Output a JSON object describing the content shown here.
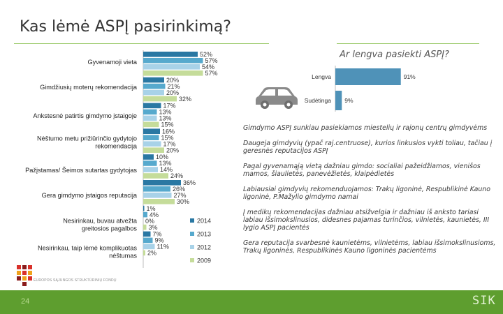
{
  "page_title": "Kas lėmė ASPĮ pasirinkimą?",
  "side_title": "Ar lengva pasiekti ASPĮ?",
  "colors": {
    "series": [
      "#2a78a3",
      "#56a9cd",
      "#a8d2e8",
      "#c5dc9a"
    ],
    "accent": "#5e9e2f",
    "rule": "#9ccb6d"
  },
  "chart_data": [
    {
      "type": "bar",
      "orientation": "horizontal",
      "categories": [
        "Gyvenamoji vieta",
        "Gimdžiusių moterų rekomendacija",
        "Ankstesnė patirtis gimdymo įstaigoje",
        "Nėštumo metu prižiūrinčio gydytojo rekomendacija",
        "Pažįstamas/ Šeimos sutartas gydytojas",
        "Gera gimdymo įstaigos reputacija",
        "Nesirinkau, buvau atvežta greitosios pagalbos",
        "Nesirinkau, taip lėmė komplikuotas nėštumas"
      ],
      "series": [
        {
          "name": "2014",
          "values": [
            52,
            20,
            17,
            16,
            10,
            36,
            1,
            7
          ]
        },
        {
          "name": "2013",
          "values": [
            57,
            21,
            13,
            15,
            13,
            26,
            4,
            9
          ]
        },
        {
          "name": "2012",
          "values": [
            54,
            20,
            13,
            17,
            14,
            27,
            0,
            11
          ]
        },
        {
          "name": "2009",
          "values": [
            57,
            32,
            15,
            20,
            24,
            30,
            3,
            2
          ]
        }
      ],
      "value_suffix": "%",
      "xlim": [
        0,
        60
      ],
      "legend_position": "bottom-right"
    },
    {
      "type": "bar",
      "orientation": "horizontal",
      "title": "Ar lengva pasiekti ASPĮ?",
      "categories": [
        "Lengva",
        "Sudėtinga"
      ],
      "values": [
        91,
        9
      ],
      "value_labels": [
        "91%",
        "9%"
      ],
      "xlim": [
        0,
        100
      ]
    }
  ],
  "notes": [
    "Gimdymo ASPĮ sunkiau pasiekiamos miestelių ir rajonų centrų gimdyvėms",
    "Daugeja gimdyvių (ypač raj.centruose), kurios linkusios vykti toliau, tačiau į geresnės reputacijos ASPĮ",
    "Pagal gyvenamąją vietą dažniau gimdo: socialiai pažeidžiamos, vienišos mamos, šiaulietės, panevėžietės, klaipėdietės",
    "Labiausiai gimdyvių rekomenduojamos: Trakų ligoninė, Respublikinė Kauno ligoninė, P.Mažylio gimdymo namai",
    "Į medikų rekomendacijas dažniau atsižvelgia ir dažniau iš anksto tariasi labiau išsimokslinusios, didesnes pajamas turinčios, vilnietės, kaunietės, III lygio ASPĮ pacientės",
    "Gera reputacija svarbesnė kaunietėms, vilnietėms, labiau išsimokslinusioms, Trakų ligoninės, Respublikinės Kauno ligoninės pacientėms"
  ],
  "logo_text": "EUROPOS SĄJUNGOS STRUKTŪRINIŲ FONDŲ",
  "footer": {
    "page_number": "24",
    "logo": "SIK"
  }
}
